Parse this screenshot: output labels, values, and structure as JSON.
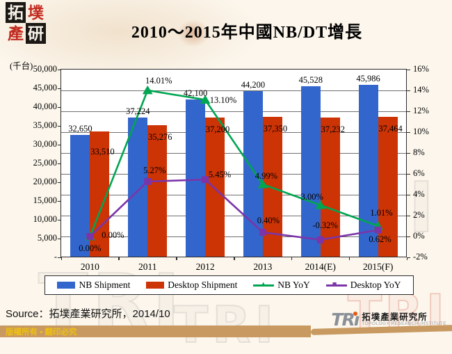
{
  "header": {
    "title": "2010～2015年中國NB/DT增長",
    "logo_chars": [
      "拓",
      "墣",
      "產",
      "研"
    ]
  },
  "chart_data": {
    "type": "combo-bar-line",
    "unit_label": "(千台)",
    "categories": [
      "2010",
      "2011",
      "2012",
      "2013",
      "2014(E)",
      "2015(F)"
    ],
    "series": [
      {
        "name": "NB Shipment",
        "type": "bar",
        "color": "#3366cc",
        "values": [
          32650,
          37224,
          42100,
          44200,
          45528,
          45986
        ],
        "labels": [
          "32,650",
          "37,224",
          "42,100",
          "44,200",
          "45,528",
          "45,986"
        ]
      },
      {
        "name": "Desktop Shipment",
        "type": "bar",
        "color": "#cc3305",
        "values": [
          33510,
          35276,
          37200,
          37350,
          37232,
          37464
        ],
        "labels": [
          "33,510",
          "35,276",
          "37,200",
          "37,350",
          "37,232",
          "37,464"
        ]
      },
      {
        "name": "NB YoY",
        "type": "line",
        "marker": "triangle",
        "color": "#00a651",
        "values": [
          0.0,
          14.01,
          13.1,
          4.99,
          3.0,
          1.01
        ],
        "labels": [
          "0.00%",
          "14.01%",
          "13.10%",
          "4.99%",
          "3.00%",
          "1.01%"
        ]
      },
      {
        "name": "Desktop YoY",
        "type": "line",
        "marker": "square",
        "color": "#7b35a8",
        "values": [
          0.0,
          5.27,
          5.45,
          0.4,
          -0.32,
          0.62
        ],
        "labels": [
          "0.00%",
          "5.27%",
          "5.45%",
          "0.40%",
          "-0.32%",
          "0.62%"
        ]
      }
    ],
    "left_axis": {
      "min": 0,
      "max": 50000,
      "step": 5000,
      "labels": [
        "50,000",
        "45,000",
        "40,000",
        "35,000",
        "30,000",
        "25,000",
        "20,000",
        "15,000",
        "10,000",
        "5,000",
        "-"
      ],
      "values": [
        50000,
        45000,
        40000,
        35000,
        30000,
        25000,
        20000,
        15000,
        10000,
        5000,
        0
      ]
    },
    "right_axis": {
      "min": -2,
      "max": 16,
      "step": 2,
      "labels": [
        "16%",
        "14%",
        "12%",
        "10%",
        "8%",
        "6%",
        "4%",
        "2%",
        "0%",
        "-2%"
      ],
      "values": [
        16,
        14,
        12,
        10,
        8,
        6,
        4,
        2,
        0,
        -2
      ]
    },
    "grid": "horizontal",
    "legend_position": "bottom"
  },
  "footer": {
    "source": "Source：拓墣產業研究所，2014/10",
    "copyright": "版權所有 ▪ 翻印必究",
    "tri_mark": "TR",
    "tri_cjk": "拓墣產業研究所",
    "tri_en": "TOPOLOGY RESEARCH INSTITUTE"
  },
  "watermark": {
    "text": "TRI"
  },
  "colors": {
    "background": "#fcf6ec",
    "nb_bar": "#3366cc",
    "desktop_bar": "#cc3305",
    "nb_line": "#00a651",
    "desktop_line": "#7b35a8",
    "band": "#c89a61",
    "copyright_text": "#eec011"
  }
}
